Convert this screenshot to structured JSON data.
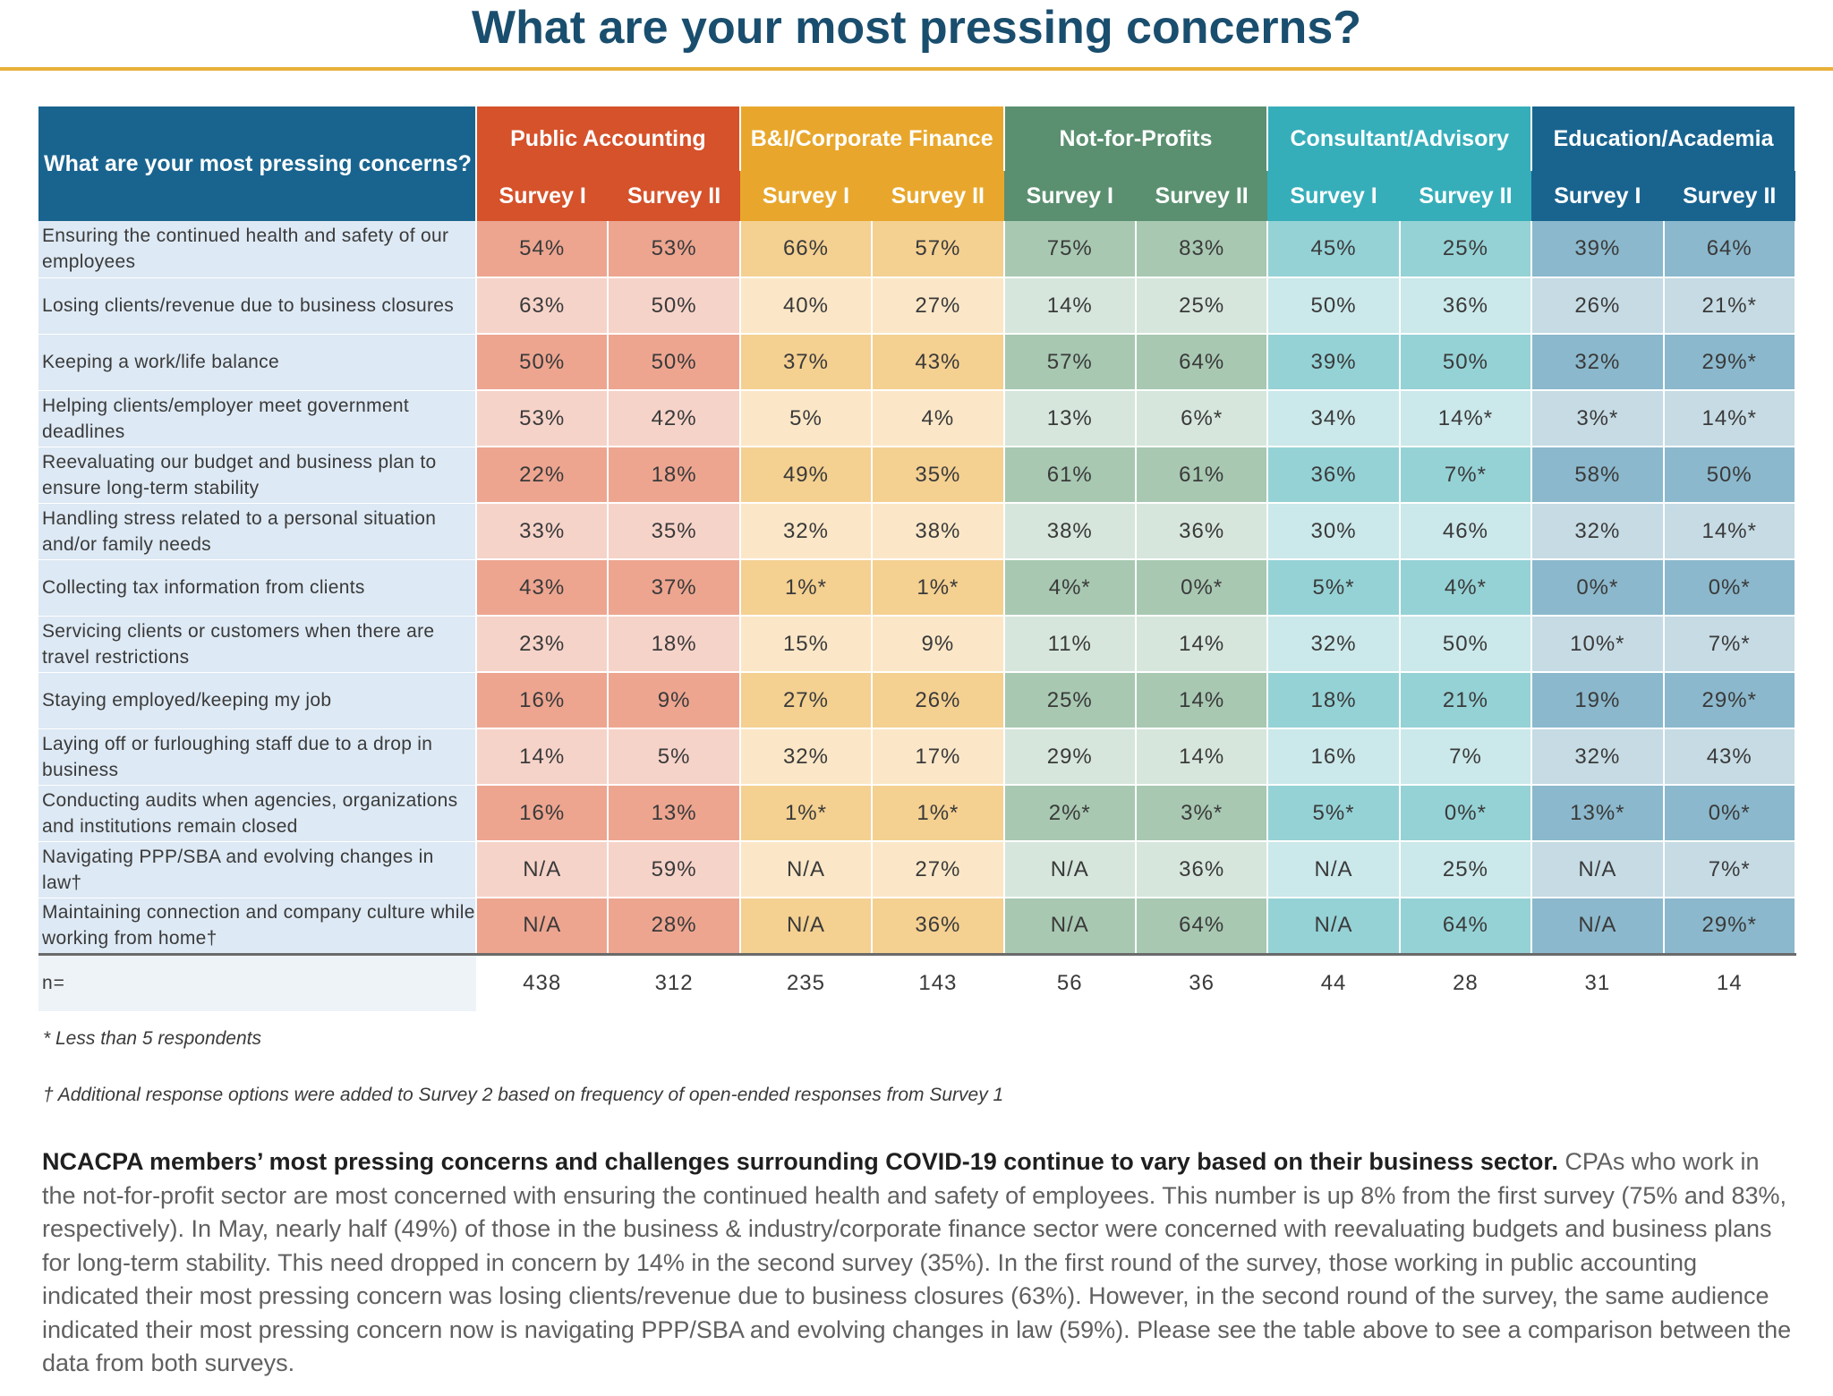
{
  "title": "What are your most pressing concerns?",
  "table": {
    "question_header": "What are your most pressing concerns?",
    "groups": [
      {
        "label": "Public Accounting",
        "header_color": "#d5522b",
        "colors": [
          "#eda590",
          "#f6d3c9"
        ]
      },
      {
        "label": "B&I/Corporate Finance",
        "header_color": "#e8a72c",
        "colors": [
          "#f4d091",
          "#fbe7c7"
        ]
      },
      {
        "label": "Not-for-Profits",
        "header_color": "#5a9070",
        "colors": [
          "#a8c8b2",
          "#d6e6dc"
        ]
      },
      {
        "label": "Consultant/Advisory",
        "header_color": "#36aeba",
        "colors": [
          "#95d2d6",
          "#cbe8ea"
        ]
      },
      {
        "label": "Education/Academia",
        "header_color": "#19648f",
        "colors": [
          "#8bb8cc",
          "#c6dbe4"
        ]
      }
    ],
    "survey_labels": [
      "Survey I",
      "Survey II"
    ],
    "rows": [
      {
        "label": "Ensuring the continued health and safety of our employees",
        "values": [
          "54%",
          "53%",
          "66%",
          "57%",
          "75%",
          "83%",
          "45%",
          "25%",
          "39%",
          "64%"
        ]
      },
      {
        "label": "Losing clients/revenue due to business closures",
        "values": [
          "63%",
          "50%",
          "40%",
          "27%",
          "14%",
          "25%",
          "50%",
          "36%",
          "26%",
          "21%*"
        ]
      },
      {
        "label": "Keeping a work/life balance",
        "values": [
          "50%",
          "50%",
          "37%",
          "43%",
          "57%",
          "64%",
          "39%",
          "50%",
          "32%",
          "29%*"
        ]
      },
      {
        "label": "Helping clients/employer meet government deadlines",
        "values": [
          "53%",
          "42%",
          "5%",
          "4%",
          "13%",
          "6%*",
          "34%",
          "14%*",
          "3%*",
          "14%*"
        ]
      },
      {
        "label": "Reevaluating our budget and business plan to ensure long-term stability",
        "values": [
          "22%",
          "18%",
          "49%",
          "35%",
          "61%",
          "61%",
          "36%",
          "7%*",
          "58%",
          "50%"
        ]
      },
      {
        "label": "Handling stress related to a personal situation and/or family needs",
        "values": [
          "33%",
          "35%",
          "32%",
          "38%",
          "38%",
          "36%",
          "30%",
          "46%",
          "32%",
          "14%*"
        ]
      },
      {
        "label": "Collecting tax information from clients",
        "values": [
          "43%",
          "37%",
          "1%*",
          "1%*",
          "4%*",
          "0%*",
          "5%*",
          "4%*",
          "0%*",
          "0%*"
        ]
      },
      {
        "label": "Servicing clients or customers when there are travel restrictions",
        "values": [
          "23%",
          "18%",
          "15%",
          "9%",
          "11%",
          "14%",
          "32%",
          "50%",
          "10%*",
          "7%*"
        ]
      },
      {
        "label": "Staying employed/keeping my job",
        "values": [
          "16%",
          "9%",
          "27%",
          "26%",
          "25%",
          "14%",
          "18%",
          "21%",
          "19%",
          "29%*"
        ]
      },
      {
        "label": "Laying off or furloughing staff due to a drop in business",
        "values": [
          "14%",
          "5%",
          "32%",
          "17%",
          "29%",
          "14%",
          "16%",
          "7%",
          "32%",
          "43%"
        ]
      },
      {
        "label": "Conducting audits when agencies, organizations and institutions remain closed",
        "values": [
          "16%",
          "13%",
          "1%*",
          "1%*",
          "2%*",
          "3%*",
          "5%*",
          "0%*",
          "13%*",
          "0%*"
        ]
      },
      {
        "label": "Navigating PPP/SBA and evolving changes in law†",
        "values": [
          "N/A",
          "59%",
          "N/A",
          "27%",
          "N/A",
          "36%",
          "N/A",
          "25%",
          "N/A",
          "7%*"
        ]
      },
      {
        "label": "Maintaining connection and company culture while working from home†",
        "values": [
          "N/A",
          "28%",
          "N/A",
          "36%",
          "N/A",
          "64%",
          "N/A",
          "64%",
          "N/A",
          "29%*"
        ]
      }
    ],
    "n_label": "n=",
    "n_values": [
      "438",
      "312",
      "235",
      "143",
      "56",
      "36",
      "44",
      "28",
      "31",
      "14"
    ]
  },
  "notes": {
    "asterisk": "* Less than 5 respondents",
    "dagger": "† Additional response options were added to Survey 2 based on frequency of open-ended responses from Survey 1"
  },
  "summary": {
    "lead": "NCACPA members’ most pressing concerns and challenges surrounding COVID-19 continue to vary based on their business sector.",
    "body": " CPAs who work in the not-for-profit sector are most concerned with ensuring the continued health and safety of employees. This number is up 8% from the first survey (75% and 83%, respectively). In May, nearly half (49%) of those in the business & industry/corporate finance sector were concerned with reevaluating budgets and business plans for long-term stability. This need dropped in concern by 14% in the second survey (35%). In the first round of the survey, those working in public accounting indicated their most pressing concern was losing clients/revenue due to business closures (63%). However, in the second round of the survey, the same audience indicated their most pressing concern now is navigating PPP/SBA and evolving changes in law (59%). Please see the table above to see a comparison between the data from both surveys."
  }
}
